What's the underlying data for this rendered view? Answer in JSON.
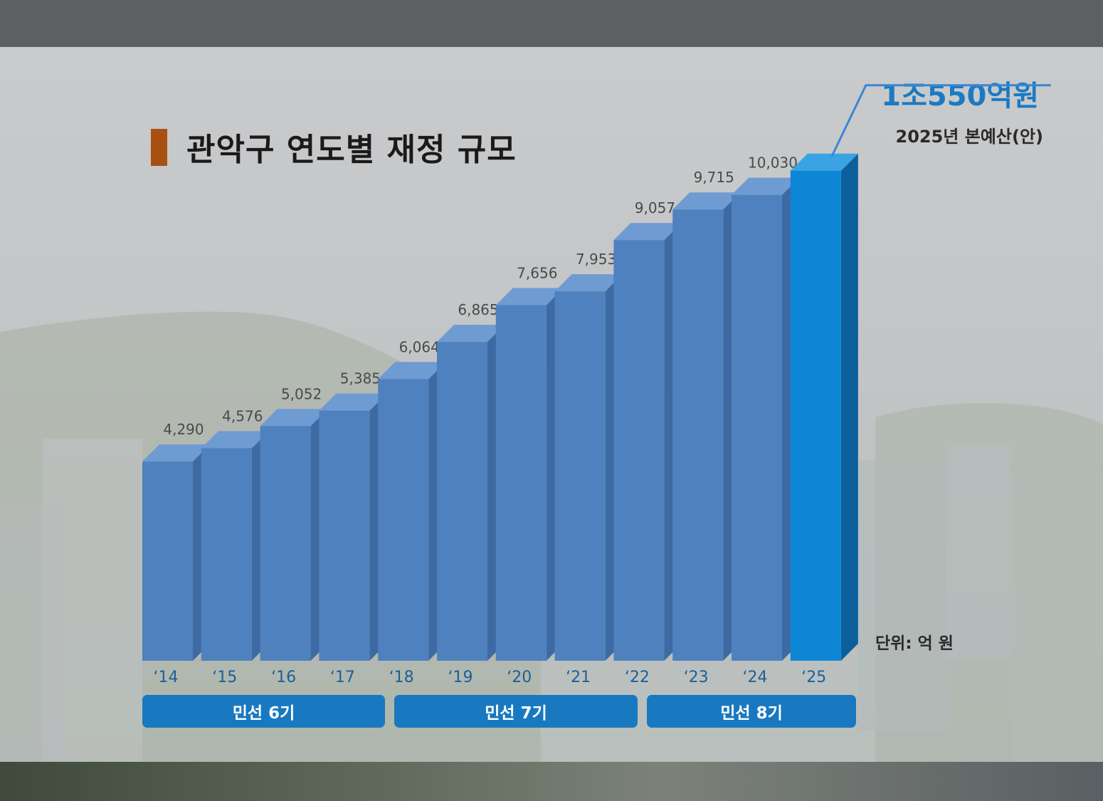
{
  "header": {
    "title": "관악구 연도별 재정 규모",
    "headline": "1조550억원",
    "subline": "2025년 본예산(안)",
    "unit": "단위: 억 원"
  },
  "terms": [
    {
      "label": "민선 6기"
    },
    {
      "label": "민선 7기"
    },
    {
      "label": "민선 8기"
    }
  ],
  "colors": {
    "bar_front": "#4f81be",
    "bar_top": "#6f9bd3",
    "bar_side": "#3e6aa3",
    "highlight_front": "#0d86d6",
    "highlight_top": "#3aa3e3",
    "highlight_side": "#0a5f9c",
    "term_fill": "#1979c0",
    "value_label": "#4a4a4a",
    "tick_label": "#1d5f9a"
  },
  "chart_data": {
    "type": "bar",
    "categories": [
      "‘14",
      "‘15",
      "‘16",
      "‘17",
      "‘18",
      "‘19",
      "‘20",
      "‘21",
      "‘22",
      "‘23",
      "‘24",
      "‘25"
    ],
    "values": [
      4290,
      4576,
      5052,
      5385,
      6064,
      6865,
      7656,
      7953,
      9057,
      9715,
      10030,
      10550
    ],
    "value_labels": [
      "4,290",
      "4,576",
      "5,052",
      "5,385",
      "6,064",
      "6,865",
      "7,656",
      "7,953",
      "9,057",
      "9,715",
      "10,030",
      ""
    ],
    "highlight_index": 11,
    "ylabel": "단위: 억 원"
  }
}
